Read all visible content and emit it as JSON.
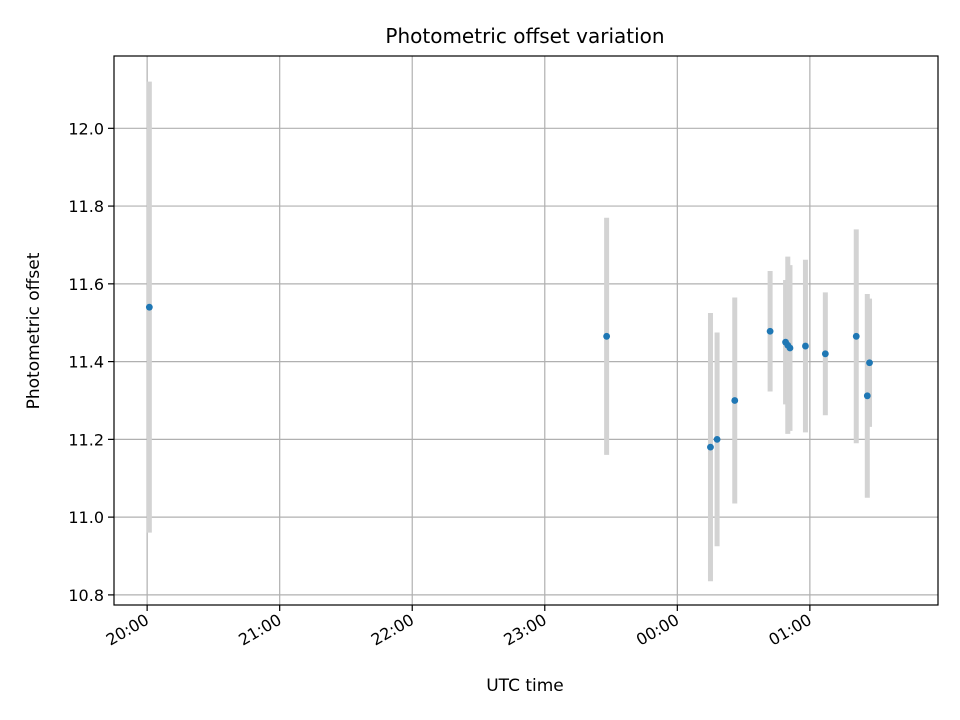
{
  "chart_data": {
    "type": "scatter",
    "title": "Photometric offset variation",
    "xlabel": "UTC time",
    "ylabel": "Photometric offset",
    "x_tick_labels": [
      "20:00",
      "21:00",
      "22:00",
      "23:00",
      "00:00",
      "01:00"
    ],
    "y_tick_labels": [
      "10.8",
      "11.0",
      "11.2",
      "11.4",
      "11.6",
      "11.8",
      "12.0"
    ],
    "x_range": [
      "19:45",
      "01:58"
    ],
    "ylim": [
      10.774,
      12.186
    ],
    "grid": true,
    "errorbar_color": "#d3d3d3",
    "point_color": "#1f77b4",
    "points": [
      {
        "x": "20:01",
        "y": 11.54,
        "err": 0.58
      },
      {
        "x": "23:28",
        "y": 11.465,
        "err": 0.305
      },
      {
        "x": "00:15",
        "y": 11.18,
        "err": 0.345
      },
      {
        "x": "00:18",
        "y": 11.2,
        "err": 0.275
      },
      {
        "x": "00:26",
        "y": 11.3,
        "err": 0.265
      },
      {
        "x": "00:42",
        "y": 11.478,
        "err": 0.155
      },
      {
        "x": "00:49",
        "y": 11.45,
        "err": 0.16
      },
      {
        "x": "00:50",
        "y": 11.442,
        "err": 0.228
      },
      {
        "x": "00:51",
        "y": 11.435,
        "err": 0.213
      },
      {
        "x": "00:58",
        "y": 11.44,
        "err": 0.222
      },
      {
        "x": "01:07",
        "y": 11.42,
        "err": 0.158
      },
      {
        "x": "01:21",
        "y": 11.465,
        "err": 0.275
      },
      {
        "x": "01:26",
        "y": 11.312,
        "err": 0.262
      },
      {
        "x": "01:27",
        "y": 11.397,
        "err": 0.165
      }
    ]
  }
}
